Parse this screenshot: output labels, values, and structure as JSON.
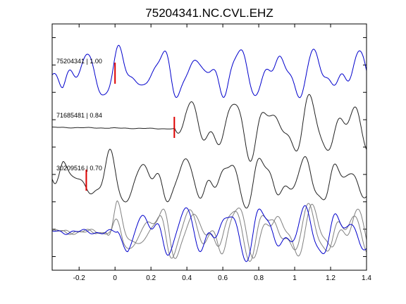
{
  "chart_data": {
    "type": "line",
    "title": "75204341.NC.CVL.EHZ",
    "xlabel": "",
    "ylabel": "",
    "xlim": [
      -0.35,
      1.4
    ],
    "x_ticks": [
      -0.2,
      0,
      0.2,
      0.4,
      0.6,
      0.8,
      1,
      1.2,
      1.4
    ],
    "x_tick_labels": [
      "-0.2",
      "0",
      "0.2",
      "0.4",
      "0.6",
      "0.8",
      "1",
      "1.2",
      "1.4"
    ],
    "y_tick_count": 9,
    "grid": false,
    "colors": {
      "master": "#0000cc",
      "matched": "#222222",
      "overlay_gray": "#808080",
      "pick": "#dd0000"
    },
    "traces": [
      {
        "id": "75204341",
        "cc": "1.00",
        "label": "75204341 | 1.00",
        "color": "#0000cc",
        "pick_time": 0.0,
        "onset": -0.35,
        "baseline": 104
      },
      {
        "id": "71685481",
        "cc": "0.84",
        "label": "71685481 | 0.84",
        "color": "#222222",
        "pick_time": 0.33,
        "onset": 0.33,
        "baseline": 181
      },
      {
        "id": "30209516",
        "cc": "0.70",
        "label": "30209516 | 0.70",
        "color": "#222222",
        "pick_time": -0.16,
        "onset": -0.35,
        "baseline": 256
      }
    ],
    "overlay": {
      "baseline": 329,
      "series_colors": [
        "#808080",
        "#808080",
        "#0000cc"
      ]
    }
  }
}
